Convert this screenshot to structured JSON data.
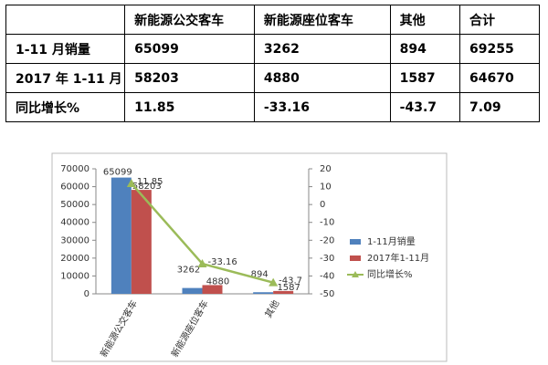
{
  "table": {
    "header": [
      "",
      "新能源公交客车",
      "新能源座位客车",
      "其他",
      "合计"
    ],
    "rows": [
      [
        "1-11 月销量",
        "65099",
        "3262",
        "894",
        "69255"
      ],
      [
        "2017 年 1-11 月",
        "58203",
        "4880",
        "1587",
        "64670"
      ],
      [
        "同比增长%",
        "11.85",
        "-33.16",
        "-43.7",
        "7.09"
      ]
    ]
  },
  "chart_data": {
    "type": "bar",
    "categories": [
      "新能源公交客车",
      "新能源座位客车",
      "其他"
    ],
    "series": [
      {
        "name": "1-11月销量",
        "color": "#4f81bd",
        "values": [
          65099,
          3262,
          894
        ]
      },
      {
        "name": "2017年1-11月",
        "color": "#c0504d",
        "values": [
          58203,
          4880,
          1587
        ]
      },
      {
        "name": "同比增长%",
        "color": "#9bbb59",
        "values": [
          11.85,
          -33.16,
          -43.7
        ],
        "axis": "y2",
        "type": "line"
      }
    ],
    "ylim": [
      0,
      70000
    ],
    "yticks": [
      0,
      10000,
      20000,
      30000,
      40000,
      50000,
      60000,
      70000
    ],
    "y2lim": [
      -50,
      20
    ],
    "y2ticks": [
      -50,
      -40,
      -30,
      -20,
      -10,
      0,
      10,
      20
    ],
    "legend": "right"
  }
}
